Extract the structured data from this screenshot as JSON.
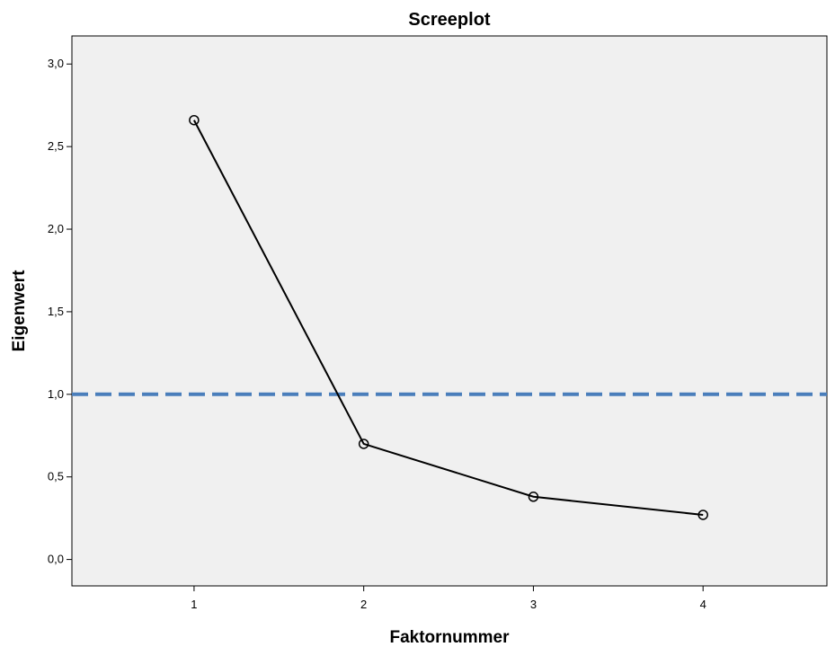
{
  "chart_data": {
    "type": "line",
    "title": "Screeplot",
    "xlabel": "Faktornummer",
    "ylabel": "Eigenwert",
    "x": [
      1,
      2,
      3,
      4
    ],
    "series": [
      {
        "values": [
          2.66,
          0.7,
          0.38,
          0.27
        ]
      }
    ],
    "xticks": [
      "1",
      "2",
      "3",
      "4"
    ],
    "yticks": [
      "0,0",
      "0,5",
      "1,0",
      "1,5",
      "2,0",
      "2,5",
      "3,0"
    ],
    "xlim": [
      0.28,
      4.73
    ],
    "ylim": [
      -0.16,
      3.17
    ],
    "reference_line": {
      "y": 1.0,
      "style": "dashed",
      "color": "#4a7ebb"
    },
    "grid": false,
    "legend": "none",
    "colors": {
      "plot_background": "#f0f0f0",
      "line": "#000000",
      "marker": "#000000"
    }
  }
}
